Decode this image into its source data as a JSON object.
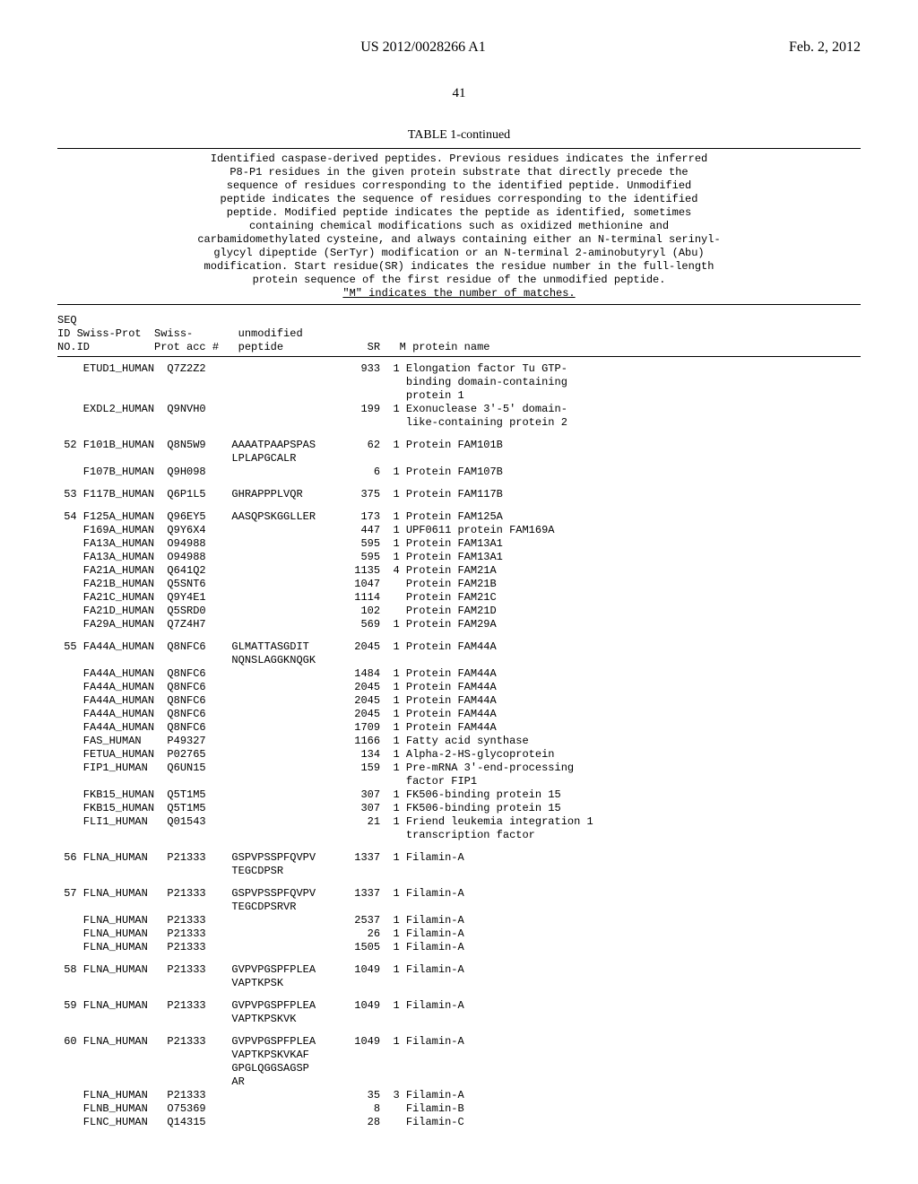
{
  "header": {
    "left": "",
    "pub": "US 2012/0028266 A1",
    "date": "Feb. 2, 2012"
  },
  "page_number": "41",
  "table_label": "TABLE 1-continued",
  "caption_lines": [
    "Identified caspase-derived peptides. Previous residues indicates the inferred",
    "P8-P1 residues in the given protein substrate that directly precede the",
    "sequence of residues corresponding to the identified peptide. Unmodified",
    "peptide indicates the sequence of residues corresponding to the identified",
    "peptide. Modified peptide indicates the peptide as identified, sometimes",
    "containing chemical modifications such as oxidized methionine and",
    "carbamidomethylated cysteine, and always containing either an N-terminal serinyl-",
    "glycyl dipeptide (SerTyr) modification or an N-terminal 2-aminobutyryl (Abu)",
    "modification. Start residue(SR) indicates the residue number  in the full-length",
    "protein sequence of the first residue of the unmodified peptide."
  ],
  "caption_underlined": "\"M\" indicates the number of matches.",
  "col_header_lines": [
    "SEQ",
    "ID Swiss-Prot  Swiss-       unmodified",
    "NO.ID          Prot acc #   peptide             SR   M protein name"
  ],
  "groups": [
    {
      "rows": [
        {
          "seq": "",
          "sp": "ETUD1_HUMAN",
          "acc": "Q7Z2Z2",
          "pep": [
            ""
          ],
          "sr": "933",
          "m": "1",
          "name": [
            "Elongation factor Tu GTP-",
            "binding domain-containing",
            "protein 1"
          ]
        },
        {
          "seq": "",
          "sp": "EXDL2_HUMAN",
          "acc": "Q9NVH0",
          "pep": [
            ""
          ],
          "sr": "199",
          "m": "1",
          "name": [
            "Exonuclease 3'-5' domain-",
            "like-containing protein 2"
          ]
        }
      ]
    },
    {
      "rows": [
        {
          "seq": "52",
          "sp": "F101B_HUMAN",
          "acc": "Q8N5W9",
          "pep": [
            "AAAATPAAPSPAS",
            "LPLAPGCALR"
          ],
          "sr": "62",
          "m": "1",
          "name": [
            "Protein FAM101B"
          ]
        },
        {
          "seq": "",
          "sp": "F107B_HUMAN",
          "acc": "Q9H098",
          "pep": [
            ""
          ],
          "sr": "6",
          "m": "1",
          "name": [
            "Protein FAM107B"
          ]
        }
      ]
    },
    {
      "rows": [
        {
          "seq": "53",
          "sp": "F117B_HUMAN",
          "acc": "Q6P1L5",
          "pep": [
            "GHRAPPPLVQR"
          ],
          "sr": "375",
          "m": "1",
          "name": [
            "Protein FAM117B"
          ]
        }
      ]
    },
    {
      "rows": [
        {
          "seq": "54",
          "sp": "F125A_HUMAN",
          "acc": "Q96EY5",
          "pep": [
            "AASQPSKGGLLER"
          ],
          "sr": "173",
          "m": "1",
          "name": [
            "Protein FAM125A"
          ]
        },
        {
          "seq": "",
          "sp": "F169A_HUMAN",
          "acc": "Q9Y6X4",
          "pep": [
            ""
          ],
          "sr": "447",
          "m": "1",
          "name": [
            "UPF0611 protein FAM169A"
          ]
        },
        {
          "seq": "",
          "sp": "FA13A_HUMAN",
          "acc": "O94988",
          "pep": [
            ""
          ],
          "sr": "595",
          "m": "1",
          "name": [
            "Protein FAM13A1"
          ]
        },
        {
          "seq": "",
          "sp": "FA13A_HUMAN",
          "acc": "O94988",
          "pep": [
            ""
          ],
          "sr": "595",
          "m": "1",
          "name": [
            "Protein FAM13A1"
          ]
        },
        {
          "seq": "",
          "sp": "FA21A_HUMAN",
          "acc": "Q641Q2",
          "pep": [
            ""
          ],
          "sr": "1135",
          "m": "4",
          "name": [
            "Protein FAM21A"
          ]
        },
        {
          "seq": "",
          "sp": "FA21B_HUMAN",
          "acc": "Q5SNT6",
          "pep": [
            ""
          ],
          "sr": "1047",
          "m": "",
          "name": [
            "Protein FAM21B"
          ]
        },
        {
          "seq": "",
          "sp": "FA21C_HUMAN",
          "acc": "Q9Y4E1",
          "pep": [
            ""
          ],
          "sr": "1114",
          "m": "",
          "name": [
            "Protein FAM21C"
          ]
        },
        {
          "seq": "",
          "sp": "FA21D_HUMAN",
          "acc": "Q5SRD0",
          "pep": [
            ""
          ],
          "sr": "102",
          "m": "",
          "name": [
            "Protein FAM21D"
          ]
        },
        {
          "seq": "",
          "sp": "FA29A_HUMAN",
          "acc": "Q7Z4H7",
          "pep": [
            ""
          ],
          "sr": "569",
          "m": "1",
          "name": [
            "Protein FAM29A"
          ]
        }
      ]
    },
    {
      "rows": [
        {
          "seq": "55",
          "sp": "FA44A_HUMAN",
          "acc": "Q8NFC6",
          "pep": [
            "GLMATTASGDIT",
            "NQNSLAGGKNQGK"
          ],
          "sr": "2045",
          "m": "1",
          "name": [
            "Protein FAM44A"
          ]
        },
        {
          "seq": "",
          "sp": "FA44A_HUMAN",
          "acc": "Q8NFC6",
          "pep": [
            ""
          ],
          "sr": "1484",
          "m": "1",
          "name": [
            "Protein FAM44A"
          ]
        },
        {
          "seq": "",
          "sp": "FA44A_HUMAN",
          "acc": "Q8NFC6",
          "pep": [
            ""
          ],
          "sr": "2045",
          "m": "1",
          "name": [
            "Protein FAM44A"
          ]
        },
        {
          "seq": "",
          "sp": "FA44A_HUMAN",
          "acc": "Q8NFC6",
          "pep": [
            ""
          ],
          "sr": "2045",
          "m": "1",
          "name": [
            "Protein FAM44A"
          ]
        },
        {
          "seq": "",
          "sp": "FA44A_HUMAN",
          "acc": "Q8NFC6",
          "pep": [
            ""
          ],
          "sr": "2045",
          "m": "1",
          "name": [
            "Protein FAM44A"
          ]
        },
        {
          "seq": "",
          "sp": "FA44A_HUMAN",
          "acc": "Q8NFC6",
          "pep": [
            ""
          ],
          "sr": "1709",
          "m": "1",
          "name": [
            "Protein FAM44A"
          ]
        },
        {
          "seq": "",
          "sp": "FAS_HUMAN",
          "acc": "P49327",
          "pep": [
            ""
          ],
          "sr": "1166",
          "m": "1",
          "name": [
            "Fatty acid synthase"
          ]
        },
        {
          "seq": "",
          "sp": "FETUA_HUMAN",
          "acc": "P02765",
          "pep": [
            ""
          ],
          "sr": "134",
          "m": "1",
          "name": [
            "Alpha-2-HS-glycoprotein"
          ]
        },
        {
          "seq": "",
          "sp": "FIP1_HUMAN",
          "acc": "Q6UN15",
          "pep": [
            ""
          ],
          "sr": "159",
          "m": "1",
          "name": [
            "Pre-mRNA 3'-end-processing",
            "factor FIP1"
          ]
        },
        {
          "seq": "",
          "sp": "FKB15_HUMAN",
          "acc": "Q5T1M5",
          "pep": [
            ""
          ],
          "sr": "307",
          "m": "1",
          "name": [
            "FK506-binding protein 15"
          ]
        },
        {
          "seq": "",
          "sp": "FKB15_HUMAN",
          "acc": "Q5T1M5",
          "pep": [
            ""
          ],
          "sr": "307",
          "m": "1",
          "name": [
            "FK506-binding protein 15"
          ]
        },
        {
          "seq": "",
          "sp": "FLI1_HUMAN",
          "acc": "Q01543",
          "pep": [
            ""
          ],
          "sr": "21",
          "m": "1",
          "name": [
            "Friend leukemia integration 1",
            "transcription factor"
          ]
        }
      ]
    },
    {
      "rows": [
        {
          "seq": "56",
          "sp": "FLNA_HUMAN",
          "acc": "P21333",
          "pep": [
            "GSPVPSSPFQVPV",
            "TEGCDPSR"
          ],
          "sr": "1337",
          "m": "1",
          "name": [
            "Filamin-A"
          ]
        }
      ]
    },
    {
      "rows": [
        {
          "seq": "57",
          "sp": "FLNA_HUMAN",
          "acc": "P21333",
          "pep": [
            "GSPVPSSPFQVPV",
            "TEGCDPSRVR"
          ],
          "sr": "1337",
          "m": "1",
          "name": [
            "Filamin-A"
          ]
        },
        {
          "seq": "",
          "sp": "FLNA_HUMAN",
          "acc": "P21333",
          "pep": [
            ""
          ],
          "sr": "2537",
          "m": "1",
          "name": [
            "Filamin-A"
          ]
        },
        {
          "seq": "",
          "sp": "FLNA_HUMAN",
          "acc": "P21333",
          "pep": [
            ""
          ],
          "sr": "26",
          "m": "1",
          "name": [
            "Filamin-A"
          ]
        },
        {
          "seq": "",
          "sp": "FLNA_HUMAN",
          "acc": "P21333",
          "pep": [
            ""
          ],
          "sr": "1505",
          "m": "1",
          "name": [
            "Filamin-A"
          ]
        }
      ]
    },
    {
      "rows": [
        {
          "seq": "58",
          "sp": "FLNA_HUMAN",
          "acc": "P21333",
          "pep": [
            "GVPVPGSPFPLEA",
            "VAPTKPSK"
          ],
          "sr": "1049",
          "m": "1",
          "name": [
            "Filamin-A"
          ]
        }
      ]
    },
    {
      "rows": [
        {
          "seq": "59",
          "sp": "FLNA_HUMAN",
          "acc": "P21333",
          "pep": [
            "GVPVPGSPFPLEA",
            "VAPTKPSKVK"
          ],
          "sr": "1049",
          "m": "1",
          "name": [
            "Filamin-A"
          ]
        }
      ]
    },
    {
      "rows": [
        {
          "seq": "60",
          "sp": "FLNA_HUMAN",
          "acc": "P21333",
          "pep": [
            "GVPVPGSPFPLEA",
            "VAPTKPSKVKAF",
            "GPGLQGGSAGSP",
            "AR"
          ],
          "sr": "1049",
          "m": "1",
          "name": [
            "Filamin-A"
          ]
        },
        {
          "seq": "",
          "sp": "FLNA_HUMAN",
          "acc": "P21333",
          "pep": [
            ""
          ],
          "sr": "35",
          "m": "3",
          "name": [
            "Filamin-A"
          ]
        },
        {
          "seq": "",
          "sp": "FLNB_HUMAN",
          "acc": "O75369",
          "pep": [
            ""
          ],
          "sr": "8",
          "m": "",
          "name": [
            "Filamin-B"
          ]
        },
        {
          "seq": "",
          "sp": "FLNC_HUMAN",
          "acc": "Q14315",
          "pep": [
            ""
          ],
          "sr": "28",
          "m": "",
          "name": [
            "Filamin-C"
          ]
        }
      ]
    }
  ],
  "layout": {
    "col_seq_w": 3,
    "col_sp_w": 12,
    "col_acc_w": 9,
    "col_pep_w": 16,
    "col_sr_w": 6,
    "col_m_w": 2,
    "indent_seq": 3,
    "indent_no": 0
  },
  "colors": {
    "text": "#000000",
    "background": "#ffffff",
    "rule": "#000000"
  }
}
